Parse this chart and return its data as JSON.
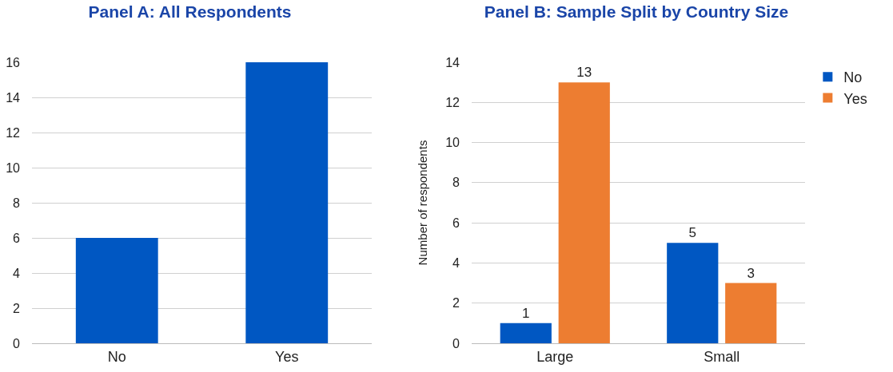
{
  "chart_data": [
    {
      "type": "bar",
      "title": "Panel A: All Respondents",
      "categories": [
        "No",
        "Yes"
      ],
      "values": [
        6,
        16
      ],
      "color": "#0057c2",
      "ylim": [
        0,
        16
      ],
      "yticks": [
        0,
        2,
        4,
        6,
        8,
        10,
        12,
        14,
        16
      ],
      "grid": "y",
      "legend": false
    },
    {
      "type": "bar",
      "title": "Panel B: Sample Split by Country Size",
      "ylabel": "Number of respondents",
      "categories": [
        "Large",
        "Small"
      ],
      "series": [
        {
          "name": "No",
          "color": "#0057c2",
          "values": [
            1,
            5
          ]
        },
        {
          "name": "Yes",
          "color": "#ed7d31",
          "values": [
            13,
            3
          ]
        }
      ],
      "ylim": [
        0,
        14
      ],
      "yticks": [
        0,
        2,
        4,
        6,
        8,
        10,
        12,
        14
      ],
      "grid": "y",
      "legend": "right",
      "data_labels": true
    }
  ]
}
